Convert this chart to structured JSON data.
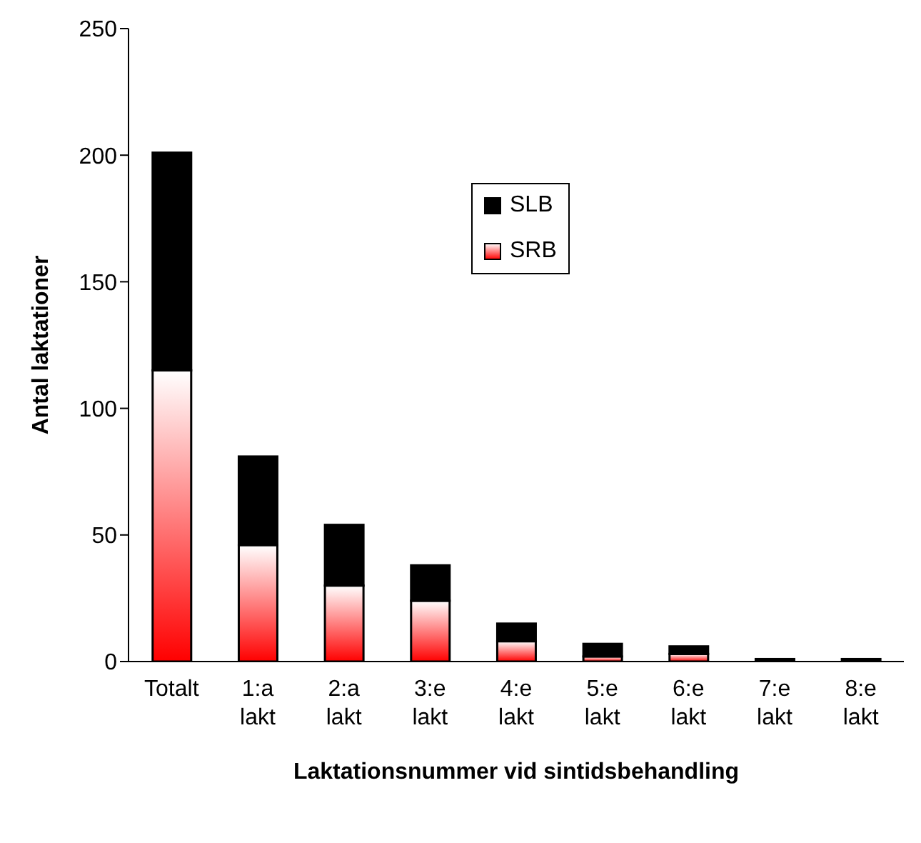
{
  "chart_data": {
    "type": "bar",
    "stacked": true,
    "xlabel": "Laktationsnummer vid sintidsbehandling",
    "ylabel": "Antal laktationer",
    "categories": [
      "Totalt",
      "1:a lakt",
      "2:a lakt",
      "3:e lakt",
      "4:e lakt",
      "5:e lakt",
      "6:e lakt",
      "7:e lakt",
      "8:e lakt"
    ],
    "series": [
      {
        "name": "SRB",
        "color": "#ff0000",
        "values": [
          115,
          46,
          30,
          24,
          8,
          2,
          3,
          0,
          0
        ]
      },
      {
        "name": "SLB",
        "color": "#000000",
        "values": [
          86,
          35,
          24,
          14,
          7,
          5,
          3,
          1,
          1
        ]
      }
    ],
    "ylim": [
      0,
      250
    ],
    "yticks": [
      0,
      50,
      100,
      150,
      200,
      250
    ],
    "grid": false,
    "legend": "top"
  }
}
